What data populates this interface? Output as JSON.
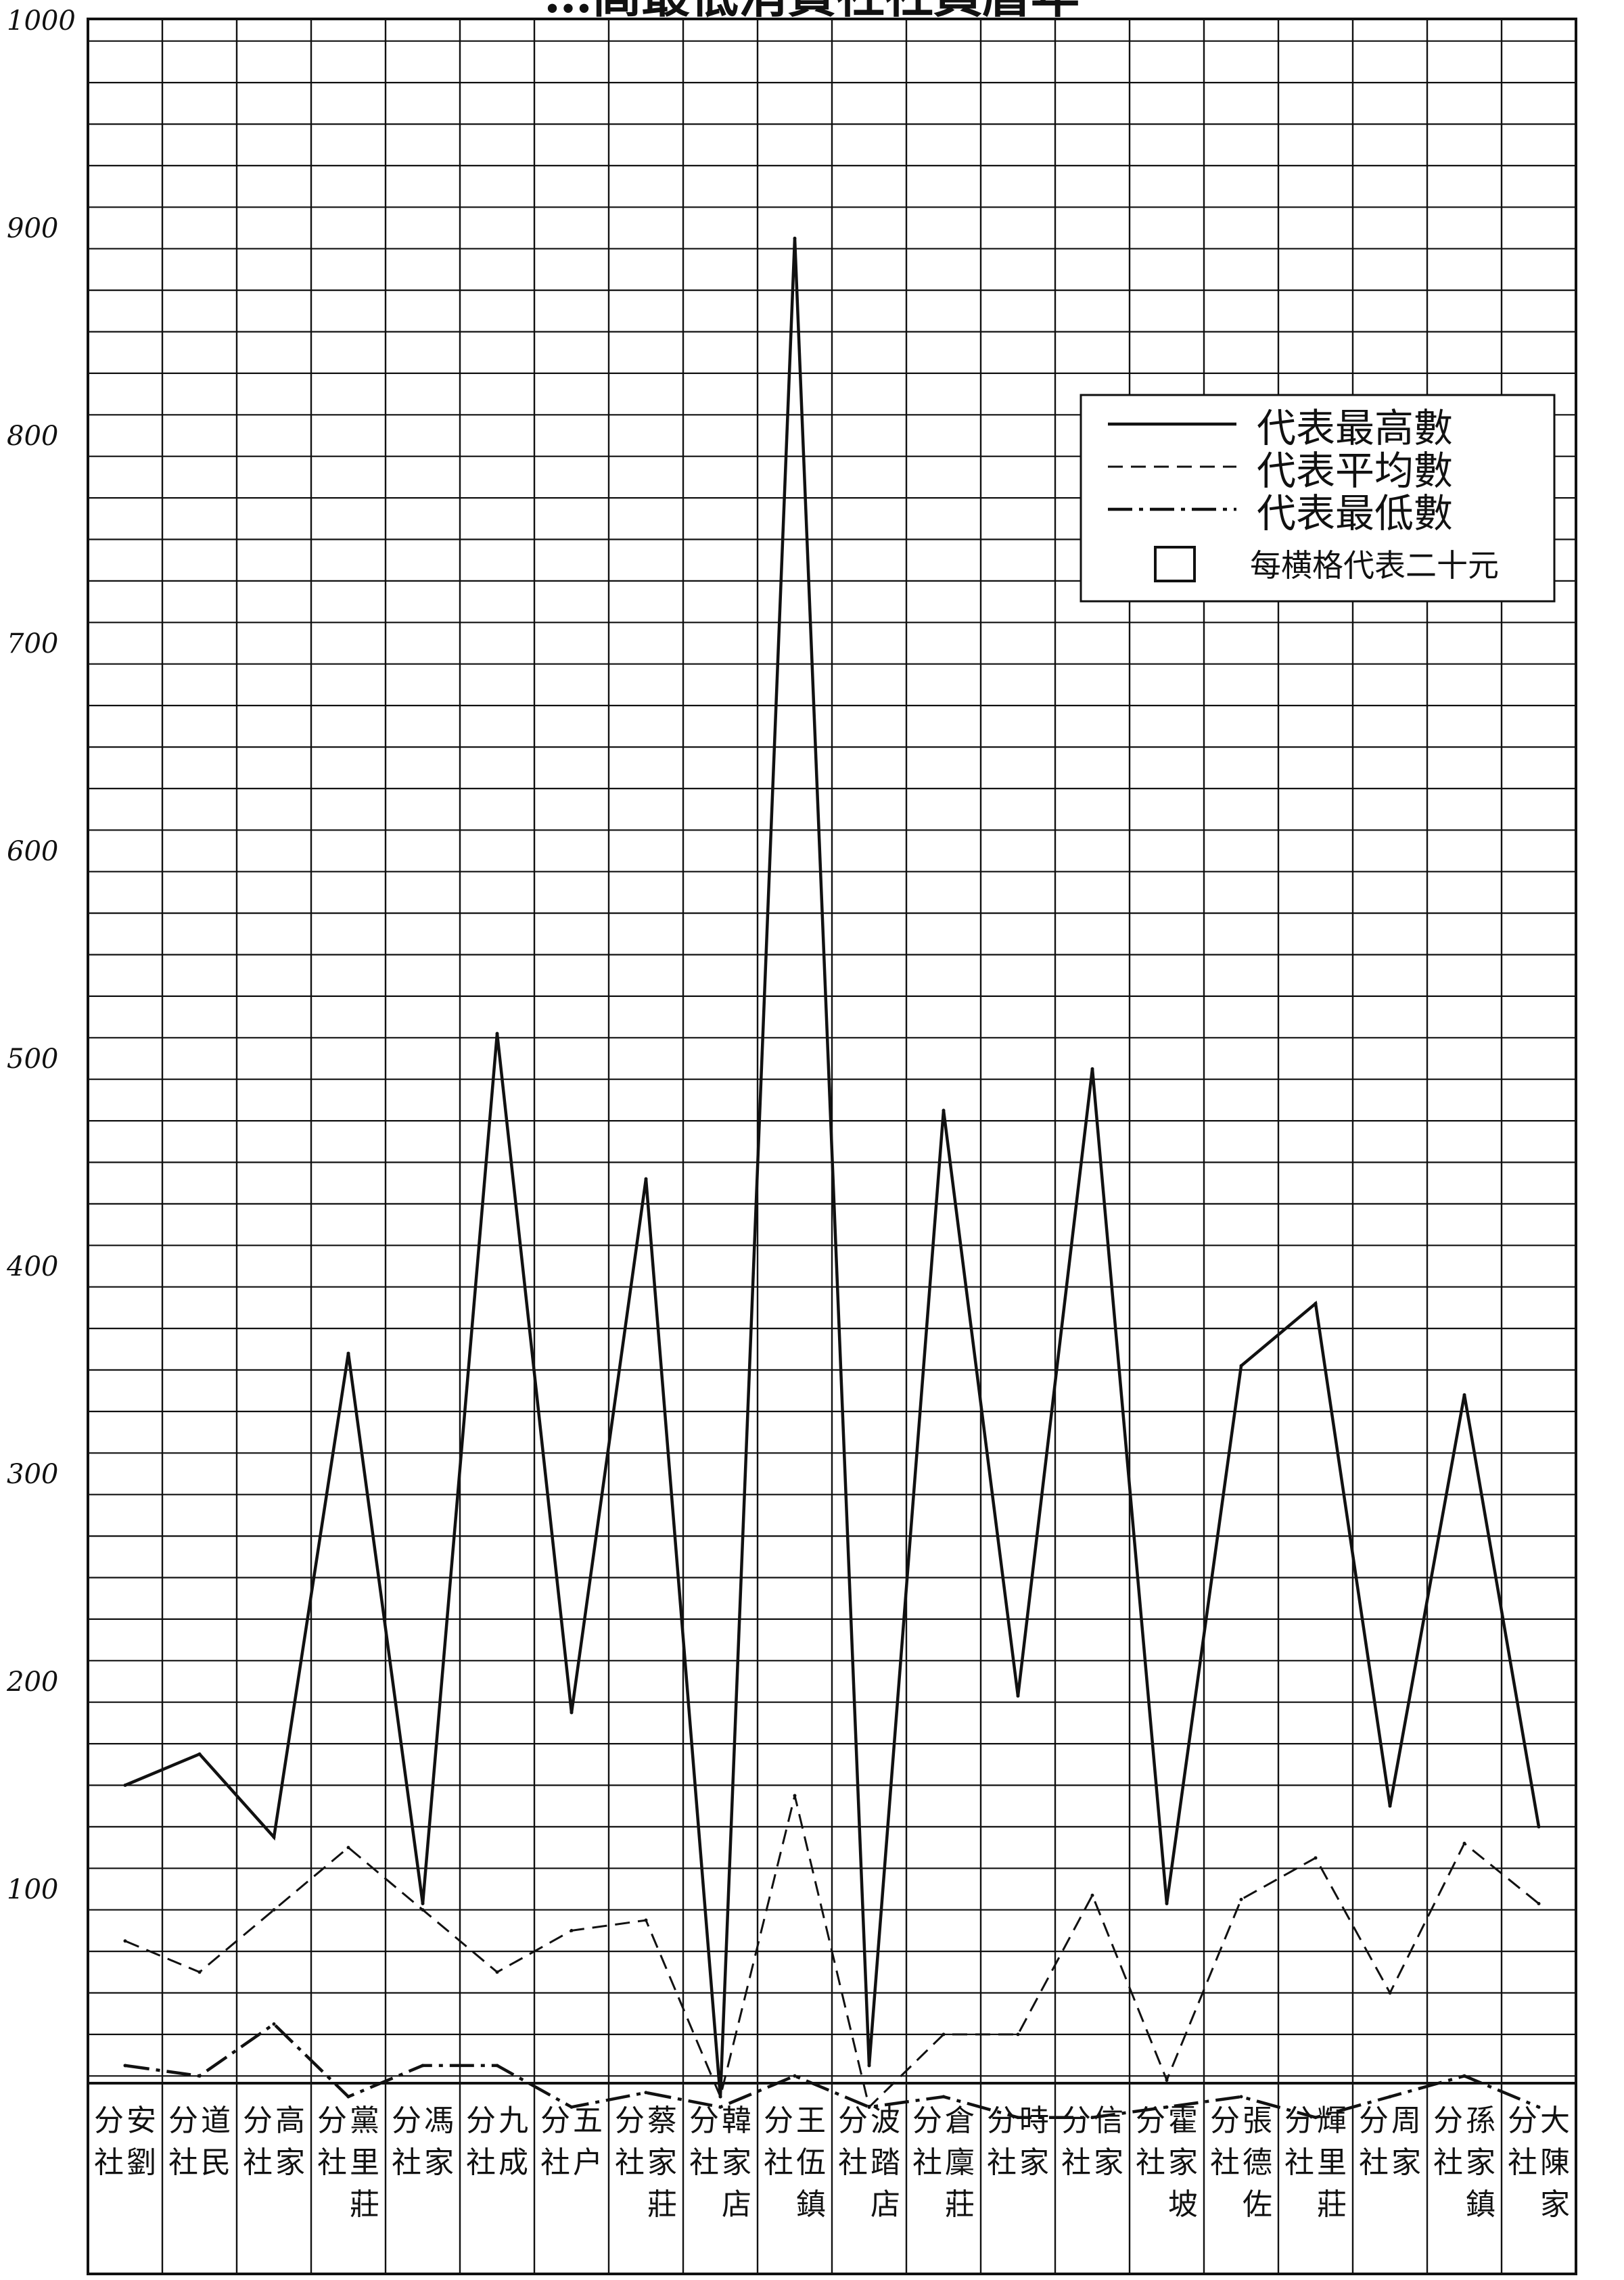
{
  "chart_data": {
    "type": "line",
    "title": "…高最低消費社社員曆年",
    "yticks": [
      "1000",
      "900",
      "800",
      "700",
      "600",
      "500",
      "400",
      "300",
      "200",
      "100"
    ],
    "ylim": [
      -110,
      1000
    ],
    "grid": true,
    "legend_position": "top-right",
    "categories": [
      "安劉分社",
      "道民分社",
      "高家分社",
      "黨里莊分社",
      "馮家分社",
      "九成分社",
      "五户分社",
      "蔡家莊分社",
      "韓家店分社",
      "王伍鎮分社",
      "波踏店分社",
      "倉廩莊分社",
      "時家分社",
      "信家分社",
      "霍家坡分社",
      "張德佐分社",
      "輝里莊分社",
      "周家分社",
      "孫家鎮分社",
      "大陳家分社"
    ],
    "series": [
      {
        "name": "代表最高數",
        "style": "solid",
        "values": [
          150,
          165,
          125,
          358,
          93,
          512,
          185,
          442,
          0,
          895,
          15,
          475,
          193,
          495,
          93,
          352,
          382,
          140,
          338,
          130
        ]
      },
      {
        "name": "代表平均數",
        "style": "dashed",
        "values": [
          75,
          60,
          90,
          120,
          90,
          60,
          80,
          85,
          0,
          145,
          -5,
          30,
          30,
          97,
          8,
          95,
          115,
          50,
          122,
          93
        ]
      },
      {
        "name": "代表最低數",
        "style": "dashdot",
        "values": [
          15,
          10,
          35,
          0,
          15,
          15,
          -5,
          2,
          -5,
          10,
          -5,
          0,
          -10,
          -10,
          -5,
          0,
          -10,
          0,
          10,
          -5
        ]
      }
    ],
    "legend_note": "每横格代表二十元"
  }
}
